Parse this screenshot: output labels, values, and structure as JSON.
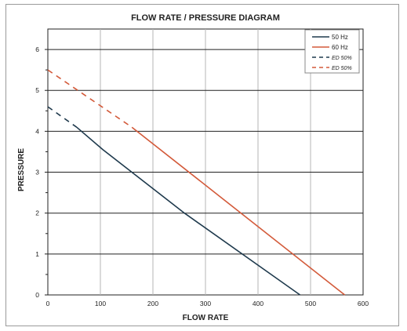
{
  "chart_data": {
    "type": "line",
    "title": "FLOW RATE / PRESSURE DIAGRAM",
    "xlabel": "FLOW RATE",
    "ylabel": "PRESSURE",
    "xlim": [
      0,
      600
    ],
    "ylim": [
      0,
      6.5
    ],
    "x_ticks": [
      0,
      100,
      200,
      300,
      400,
      500,
      600
    ],
    "y_ticks": [
      0,
      1,
      2,
      3,
      4,
      5,
      6
    ],
    "grid": true,
    "legend_position": "top-right",
    "series": [
      {
        "name": "50 Hz",
        "style": "solid",
        "color": "#1f3a4d",
        "points": [
          [
            55,
            4.1
          ],
          [
            105,
            3.55
          ],
          [
            260,
            2.0
          ],
          [
            480,
            0
          ]
        ]
      },
      {
        "name": "60 Hz",
        "style": "solid",
        "color": "#d35a3a",
        "points": [
          [
            160,
            4.1
          ],
          [
            565,
            0
          ]
        ]
      },
      {
        "name": "ED 50%",
        "style": "dashed",
        "color": "#1f3a4d",
        "points": [
          [
            0,
            4.6
          ],
          [
            55,
            4.1
          ]
        ]
      },
      {
        "name": "ED 50%",
        "style": "dashed",
        "color": "#d35a3a",
        "points": [
          [
            0,
            5.5
          ],
          [
            160,
            4.1
          ]
        ]
      }
    ]
  }
}
